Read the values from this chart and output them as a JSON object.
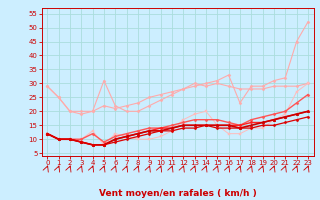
{
  "xlabel": "Vent moyen/en rafales ( km/h )",
  "bg_color": "#cceeff",
  "grid_color": "#aadddd",
  "x_values": [
    0,
    1,
    2,
    3,
    4,
    5,
    6,
    7,
    8,
    9,
    10,
    11,
    12,
    13,
    14,
    15,
    16,
    17,
    18,
    19,
    20,
    21,
    22,
    23
  ],
  "series": [
    {
      "color": "#ffaaaa",
      "lw": 0.8,
      "marker": "D",
      "ms": 1.5,
      "data": [
        29,
        25,
        20,
        20,
        20,
        22,
        21,
        22,
        23,
        25,
        26,
        27,
        28,
        29,
        30,
        31,
        33,
        23,
        29,
        29,
        31,
        32,
        45,
        52
      ]
    },
    {
      "color": "#ffaaaa",
      "lw": 0.8,
      "marker": "D",
      "ms": 1.5,
      "data": [
        29,
        25,
        20,
        19,
        20,
        31,
        22,
        20,
        20,
        22,
        24,
        26,
        28,
        30,
        29,
        30,
        29,
        28,
        28,
        28,
        29,
        29,
        29,
        30
      ]
    },
    {
      "color": "#ffbbbb",
      "lw": 0.7,
      "marker": "s",
      "ms": 1.5,
      "data": [
        12,
        10,
        10,
        10,
        13,
        8,
        12,
        11,
        10,
        10,
        11,
        13,
        17,
        19,
        20,
        15,
        12,
        12,
        14,
        14,
        17,
        19,
        27,
        30
      ]
    },
    {
      "color": "#ff5555",
      "lw": 1.0,
      "marker": "D",
      "ms": 1.5,
      "data": [
        12,
        10,
        10,
        10,
        12,
        9,
        11,
        12,
        13,
        14,
        14,
        15,
        16,
        17,
        17,
        17,
        16,
        15,
        17,
        18,
        19,
        20,
        23,
        26
      ]
    },
    {
      "color": "#ff2020",
      "lw": 1.0,
      "marker": "D",
      "ms": 1.5,
      "data": [
        12,
        10,
        10,
        9,
        8,
        8,
        10,
        11,
        12,
        13,
        14,
        14,
        15,
        15,
        15,
        15,
        15,
        15,
        16,
        16,
        17,
        18,
        19,
        20
      ]
    },
    {
      "color": "#cc0000",
      "lw": 1.2,
      "marker": "^",
      "ms": 1.8,
      "data": [
        12,
        10,
        10,
        9,
        8,
        8,
        10,
        11,
        12,
        13,
        13,
        14,
        15,
        15,
        15,
        15,
        15,
        14,
        15,
        16,
        17,
        18,
        19,
        20
      ]
    },
    {
      "color": "#dd0000",
      "lw": 0.9,
      "marker": "D",
      "ms": 1.5,
      "data": [
        12,
        10,
        10,
        9,
        8,
        8,
        9,
        10,
        11,
        12,
        13,
        13,
        14,
        14,
        15,
        14,
        14,
        14,
        14,
        15,
        15,
        16,
        17,
        18
      ]
    }
  ],
  "ylim": [
    4,
    57
  ],
  "yticks": [
    5,
    10,
    15,
    20,
    25,
    30,
    35,
    40,
    45,
    50,
    55
  ],
  "xlim": [
    -0.5,
    23.5
  ],
  "xticks": [
    0,
    1,
    2,
    3,
    4,
    5,
    6,
    7,
    8,
    9,
    10,
    11,
    12,
    13,
    14,
    15,
    16,
    17,
    18,
    19,
    20,
    21,
    22,
    23
  ],
  "tick_fontsize": 5.0,
  "xlabel_fontsize": 6.5,
  "arrow_color": "#cc0000",
  "spine_color": "#cc0000"
}
